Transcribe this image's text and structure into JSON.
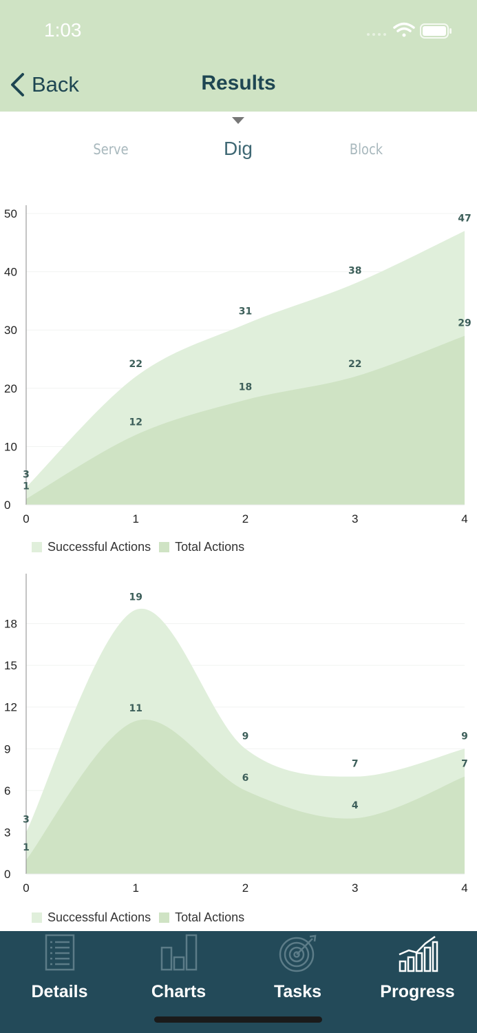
{
  "status_bar": {
    "time": "1:03"
  },
  "nav": {
    "back_label": "Back",
    "title": "Results"
  },
  "segments": {
    "items": [
      "Serve",
      "Dig",
      "Block"
    ],
    "selected": "Dig"
  },
  "colors": {
    "header": "#cfe3c4",
    "successful": "#e0efdb",
    "total": "#cfe3c4",
    "tabbar": "#234a59",
    "label": "#3d5f5a"
  },
  "chart_data": [
    {
      "type": "area",
      "x": [
        0,
        1,
        2,
        3,
        4
      ],
      "xlim": [
        0,
        4
      ],
      "ylim": [
        0,
        50
      ],
      "yticks": [
        0,
        10,
        20,
        30,
        40,
        50
      ],
      "series": [
        {
          "name": "Successful Actions",
          "values": [
            3,
            22,
            31,
            38,
            47
          ]
        },
        {
          "name": "Total Actions",
          "values": [
            1,
            12,
            18,
            22,
            29
          ]
        }
      ],
      "legend": [
        "Successful Actions",
        "Total Actions"
      ],
      "legend_position": "bottom-left"
    },
    {
      "type": "area",
      "x": [
        0,
        1,
        2,
        3,
        4
      ],
      "xlim": [
        0,
        4
      ],
      "ylim": [
        0,
        21
      ],
      "yticks": [
        0,
        3,
        6,
        9,
        12,
        15,
        18
      ],
      "series": [
        {
          "name": "Successful Actions",
          "values": [
            3,
            19,
            9,
            7,
            9
          ]
        },
        {
          "name": "Total Actions",
          "values": [
            1,
            11,
            6,
            4,
            7
          ]
        }
      ],
      "legend": [
        "Successful Actions",
        "Total Actions"
      ],
      "legend_position": "bottom-left"
    }
  ],
  "tabs": [
    {
      "label": "Details",
      "icon": "list-document-icon"
    },
    {
      "label": "Charts",
      "icon": "bar-chart-icon"
    },
    {
      "label": "Tasks",
      "icon": "target-icon"
    },
    {
      "label": "Progress",
      "icon": "growth-chart-icon"
    }
  ]
}
